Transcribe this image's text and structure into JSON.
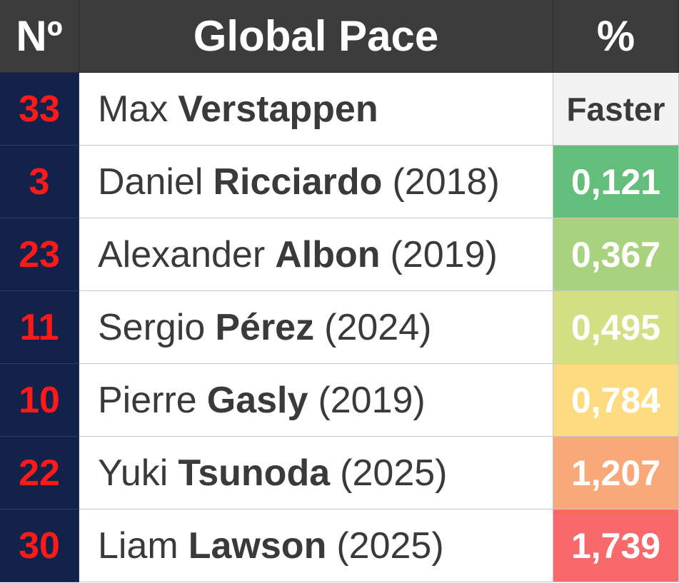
{
  "header": {
    "number": "Nº",
    "title": "Global Pace",
    "percent": "%"
  },
  "rows": [
    {
      "number": "33",
      "first": "Max",
      "last": "Verstappen",
      "value": "Faster",
      "color": "#f2f2f2"
    },
    {
      "number": "3",
      "first": "Daniel",
      "last": "Ricciardo",
      "year": "(2018)",
      "value": "0,121",
      "color": "#63be7b"
    },
    {
      "number": "23",
      "first": "Alexander",
      "last": "Albon",
      "year": "(2019)",
      "value": "0,367",
      "color": "#a9d27f"
    },
    {
      "number": "11",
      "first": "Sergio",
      "last": "Pérez",
      "year": "(2024)",
      "value": "0,495",
      "color": "#d3df82"
    },
    {
      "number": "10",
      "first": "Pierre",
      "last": "Gasly",
      "year": "(2019)",
      "value": "0,784",
      "color": "#fddb81"
    },
    {
      "number": "22",
      "first": "Yuki",
      "last": "Tsunoda",
      "year": "(2025)",
      "value": "1,207",
      "color": "#f9a87a"
    },
    {
      "number": "30",
      "first": "Liam",
      "last": "Lawson",
      "year": "(2025)",
      "value": "1,739",
      "color": "#f8696b"
    }
  ]
}
